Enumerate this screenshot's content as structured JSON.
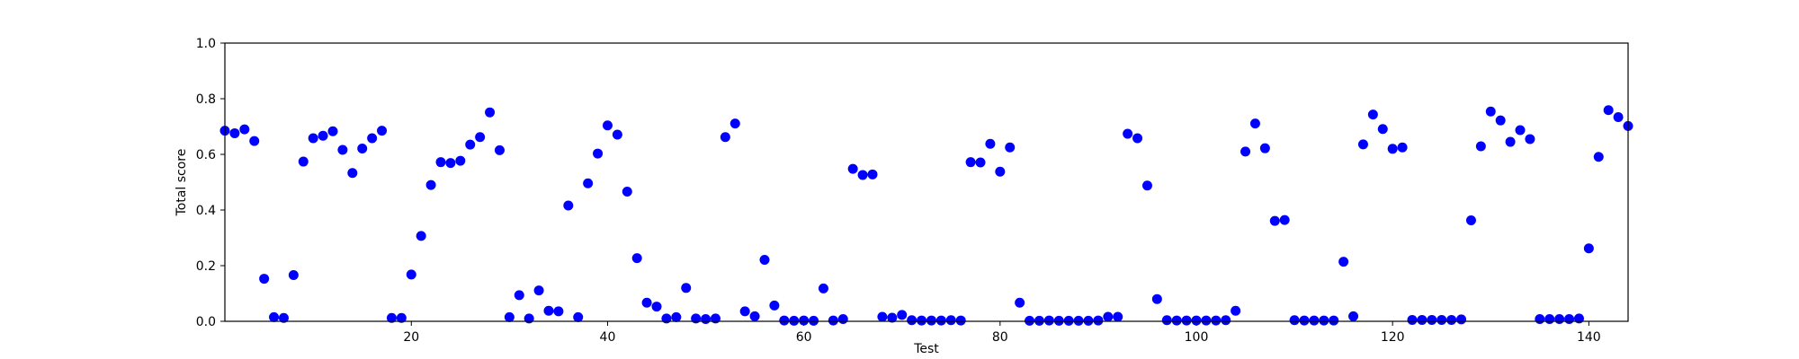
{
  "chart_data": {
    "type": "scatter",
    "xlabel": "Test",
    "ylabel": "Total score",
    "xlim": [
      1,
      144
    ],
    "ylim": [
      0.0,
      1.0
    ],
    "xticks": [
      20,
      40,
      60,
      80,
      100,
      120,
      140
    ],
    "xtick_labels": [
      "20",
      "40",
      "60",
      "80",
      "100",
      "120",
      "140"
    ],
    "yticks": [
      0.0,
      0.2,
      0.4,
      0.6,
      0.8,
      1.0
    ],
    "ytick_labels": [
      "0.0",
      "0.2",
      "0.4",
      "0.6",
      "0.8",
      "1.0"
    ],
    "grid": false,
    "marker_color": "#0000ff",
    "series": [
      {
        "points": [
          [
            1,
            0.685
          ],
          [
            2,
            0.676
          ],
          [
            3,
            0.69
          ],
          [
            4,
            0.648
          ],
          [
            5,
            0.153
          ],
          [
            6,
            0.015
          ],
          [
            7,
            0.012
          ],
          [
            8,
            0.166
          ],
          [
            9,
            0.574
          ],
          [
            10,
            0.658
          ],
          [
            11,
            0.667
          ],
          [
            12,
            0.683
          ],
          [
            13,
            0.616
          ],
          [
            14,
            0.533
          ],
          [
            15,
            0.621
          ],
          [
            16,
            0.658
          ],
          [
            17,
            0.685
          ],
          [
            18,
            0.012
          ],
          [
            19,
            0.012
          ],
          [
            20,
            0.168
          ],
          [
            21,
            0.307
          ],
          [
            22,
            0.49
          ],
          [
            23,
            0.572
          ],
          [
            24,
            0.569
          ],
          [
            25,
            0.577
          ],
          [
            26,
            0.635
          ],
          [
            27,
            0.662
          ],
          [
            28,
            0.751
          ],
          [
            29,
            0.615
          ],
          [
            30,
            0.015
          ],
          [
            31,
            0.094
          ],
          [
            32,
            0.01
          ],
          [
            33,
            0.111
          ],
          [
            34,
            0.038
          ],
          [
            35,
            0.036
          ],
          [
            36,
            0.416
          ],
          [
            37,
            0.015
          ],
          [
            38,
            0.496
          ],
          [
            39,
            0.603
          ],
          [
            40,
            0.704
          ],
          [
            41,
            0.671
          ],
          [
            42,
            0.466
          ],
          [
            43,
            0.227
          ],
          [
            44,
            0.067
          ],
          [
            45,
            0.053
          ],
          [
            46,
            0.01
          ],
          [
            47,
            0.015
          ],
          [
            48,
            0.12
          ],
          [
            49,
            0.01
          ],
          [
            50,
            0.008
          ],
          [
            51,
            0.01
          ],
          [
            52,
            0.662
          ],
          [
            53,
            0.711
          ],
          [
            54,
            0.036
          ],
          [
            55,
            0.018
          ],
          [
            56,
            0.221
          ],
          [
            57,
            0.057
          ],
          [
            58,
            0.003
          ],
          [
            59,
            0.002
          ],
          [
            60,
            0.003
          ],
          [
            61,
            0.002
          ],
          [
            62,
            0.118
          ],
          [
            63,
            0.003
          ],
          [
            64,
            0.008
          ],
          [
            65,
            0.548
          ],
          [
            66,
            0.526
          ],
          [
            67,
            0.528
          ],
          [
            68,
            0.016
          ],
          [
            69,
            0.013
          ],
          [
            70,
            0.023
          ],
          [
            71,
            0.004
          ],
          [
            72,
            0.003
          ],
          [
            73,
            0.003
          ],
          [
            74,
            0.003
          ],
          [
            75,
            0.004
          ],
          [
            76,
            0.003
          ],
          [
            77,
            0.572
          ],
          [
            78,
            0.571
          ],
          [
            79,
            0.638
          ],
          [
            80,
            0.538
          ],
          [
            81,
            0.625
          ],
          [
            82,
            0.067
          ],
          [
            83,
            0.002
          ],
          [
            84,
            0.002
          ],
          [
            85,
            0.003
          ],
          [
            86,
            0.002
          ],
          [
            87,
            0.002
          ],
          [
            88,
            0.002
          ],
          [
            89,
            0.002
          ],
          [
            90,
            0.003
          ],
          [
            91,
            0.016
          ],
          [
            92,
            0.016
          ],
          [
            93,
            0.674
          ],
          [
            94,
            0.658
          ],
          [
            95,
            0.488
          ],
          [
            96,
            0.08
          ],
          [
            97,
            0.004
          ],
          [
            98,
            0.003
          ],
          [
            99,
            0.003
          ],
          [
            100,
            0.003
          ],
          [
            101,
            0.003
          ],
          [
            102,
            0.003
          ],
          [
            103,
            0.004
          ],
          [
            104,
            0.038
          ],
          [
            105,
            0.61
          ],
          [
            106,
            0.711
          ],
          [
            107,
            0.622
          ],
          [
            108,
            0.361
          ],
          [
            109,
            0.364
          ],
          [
            110,
            0.004
          ],
          [
            111,
            0.003
          ],
          [
            112,
            0.003
          ],
          [
            113,
            0.003
          ],
          [
            114,
            0.003
          ],
          [
            115,
            0.214
          ],
          [
            116,
            0.018
          ],
          [
            117,
            0.636
          ],
          [
            118,
            0.743
          ],
          [
            119,
            0.691
          ],
          [
            120,
            0.62
          ],
          [
            121,
            0.625
          ],
          [
            122,
            0.005
          ],
          [
            123,
            0.005
          ],
          [
            124,
            0.005
          ],
          [
            125,
            0.005
          ],
          [
            126,
            0.005
          ],
          [
            127,
            0.007
          ],
          [
            128,
            0.363
          ],
          [
            129,
            0.629
          ],
          [
            130,
            0.754
          ],
          [
            131,
            0.722
          ],
          [
            132,
            0.645
          ],
          [
            133,
            0.687
          ],
          [
            134,
            0.655
          ],
          [
            135,
            0.008
          ],
          [
            136,
            0.008
          ],
          [
            137,
            0.008
          ],
          [
            138,
            0.008
          ],
          [
            139,
            0.01
          ],
          [
            140,
            0.262
          ],
          [
            141,
            0.591
          ],
          [
            142,
            0.759
          ],
          [
            143,
            0.734
          ],
          [
            144,
            0.702
          ]
        ]
      }
    ]
  }
}
